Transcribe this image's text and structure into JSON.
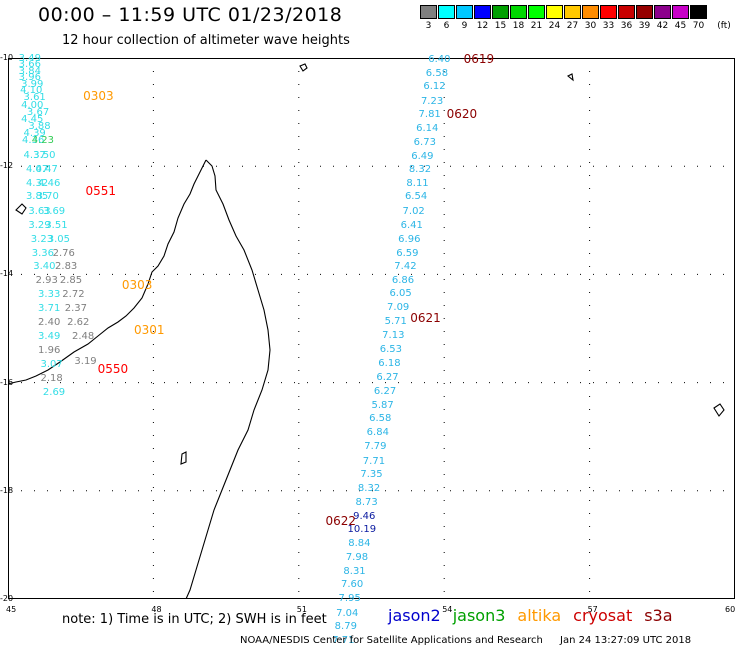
{
  "header": {
    "title": "00:00 – 11:59 UTC 01/23/2018",
    "subtitle": "12 hour collection of altimeter wave heights"
  },
  "scale": {
    "unit": "(ft)",
    "items": [
      {
        "label": "3",
        "color": "#7f7f7f"
      },
      {
        "label": "6",
        "color": "#00ffff"
      },
      {
        "label": "9",
        "color": "#00c8ff"
      },
      {
        "label": "12",
        "color": "#0000ff"
      },
      {
        "label": "15",
        "color": "#00a000"
      },
      {
        "label": "18",
        "color": "#00d800"
      },
      {
        "label": "21",
        "color": "#00ff00"
      },
      {
        "label": "24",
        "color": "#ffff00"
      },
      {
        "label": "27",
        "color": "#ffc800"
      },
      {
        "label": "30",
        "color": "#ff8c00"
      },
      {
        "label": "33",
        "color": "#ff0000"
      },
      {
        "label": "36",
        "color": "#c80000"
      },
      {
        "label": "39",
        "color": "#960000"
      },
      {
        "label": "42",
        "color": "#8c008c"
      },
      {
        "label": "45",
        "color": "#c800c8"
      },
      {
        "label": "70",
        "color": "#000000"
      }
    ]
  },
  "axes": {
    "lon_ticks": [
      "45",
      "48",
      "51",
      "54",
      "57",
      "60"
    ],
    "lat_ticks": [
      "-10",
      "-12",
      "-14",
      "-16",
      "-18",
      "-20"
    ],
    "lon_range": [
      45,
      60
    ],
    "lat_range": [
      -10,
      -20
    ],
    "grid": true
  },
  "passes": [
    {
      "label": "0619",
      "color": "#8b0000",
      "lon": 54.4,
      "lat": -10.01
    },
    {
      "label": "0620",
      "color": "#8b0000",
      "lon": 54.05,
      "lat": -11.04
    },
    {
      "label": "0621",
      "color": "#8b0000",
      "lon": 53.3,
      "lat": -14.8
    },
    {
      "label": "0622",
      "color": "#8b0000",
      "lon": 51.55,
      "lat": -18.55
    },
    {
      "label": "0303",
      "color": "#ff9900",
      "lon": 46.55,
      "lat": -10.7
    },
    {
      "label": "0551",
      "color": "#ff0000",
      "lon": 46.6,
      "lat": -12.45
    },
    {
      "label": "0303",
      "color": "#ff9900",
      "lon": 47.35,
      "lat": -14.2
    },
    {
      "label": "0301",
      "color": "#ff9900",
      "lon": 47.6,
      "lat": -15.03
    },
    {
      "label": "0550",
      "color": "#ff0000",
      "lon": 46.85,
      "lat": -15.75
    }
  ],
  "measurements": [
    {
      "v": "6.40",
      "lon": 53.9,
      "lat": -10.02,
      "c": "#2cb5e6"
    },
    {
      "v": "6.58",
      "lon": 53.85,
      "lat": -10.27,
      "c": "#2cb5e6"
    },
    {
      "v": "6.12",
      "lon": 53.8,
      "lat": -10.52,
      "c": "#2cb5e6"
    },
    {
      "v": "7.23",
      "lon": 53.75,
      "lat": -10.79,
      "c": "#2cb5e6"
    },
    {
      "v": "7.81",
      "lon": 53.7,
      "lat": -11.04,
      "c": "#2cb5e6"
    },
    {
      "v": "6.14",
      "lon": 53.65,
      "lat": -11.3,
      "c": "#2cb5e6"
    },
    {
      "v": "6.73",
      "lon": 53.6,
      "lat": -11.56,
      "c": "#2cb5e6"
    },
    {
      "v": "6.49",
      "lon": 53.55,
      "lat": -11.81,
      "c": "#2cb5e6"
    },
    {
      "v": "8.32",
      "lon": 53.5,
      "lat": -12.06,
      "c": "#2cb5e6"
    },
    {
      "v": "8.11",
      "lon": 53.45,
      "lat": -12.31,
      "c": "#2cb5e6"
    },
    {
      "v": "6.54",
      "lon": 53.42,
      "lat": -12.56,
      "c": "#2cb5e6"
    },
    {
      "v": "7.02",
      "lon": 53.37,
      "lat": -12.83,
      "c": "#2cb5e6"
    },
    {
      "v": "6.41",
      "lon": 53.33,
      "lat": -13.09,
      "c": "#2cb5e6"
    },
    {
      "v": "6.96",
      "lon": 53.28,
      "lat": -13.34,
      "c": "#2cb5e6"
    },
    {
      "v": "6.59",
      "lon": 53.24,
      "lat": -13.6,
      "c": "#2cb5e6"
    },
    {
      "v": "7.42",
      "lon": 53.2,
      "lat": -13.85,
      "c": "#2cb5e6"
    },
    {
      "v": "6.86",
      "lon": 53.15,
      "lat": -14.1,
      "c": "#2cb5e6"
    },
    {
      "v": "6.05",
      "lon": 53.1,
      "lat": -14.35,
      "c": "#2cb5e6"
    },
    {
      "v": "7.09",
      "lon": 53.05,
      "lat": -14.61,
      "c": "#2cb5e6"
    },
    {
      "v": "5.71",
      "lon": 53.0,
      "lat": -14.87,
      "c": "#2cb5e6"
    },
    {
      "v": "7.13",
      "lon": 52.95,
      "lat": -15.12,
      "c": "#2cb5e6"
    },
    {
      "v": "6.53",
      "lon": 52.9,
      "lat": -15.38,
      "c": "#2cb5e6"
    },
    {
      "v": "6.18",
      "lon": 52.87,
      "lat": -15.64,
      "c": "#2cb5e6"
    },
    {
      "v": "6.27",
      "lon": 52.83,
      "lat": -15.89,
      "c": "#2cb5e6"
    },
    {
      "v": "6.27",
      "lon": 52.78,
      "lat": -16.15,
      "c": "#2cb5e6"
    },
    {
      "v": "5.87",
      "lon": 52.73,
      "lat": -16.41,
      "c": "#2cb5e6"
    },
    {
      "v": "6.58",
      "lon": 52.68,
      "lat": -16.66,
      "c": "#2cb5e6"
    },
    {
      "v": "6.84",
      "lon": 52.63,
      "lat": -16.92,
      "c": "#2cb5e6"
    },
    {
      "v": "7.79",
      "lon": 52.58,
      "lat": -17.17,
      "c": "#2cb5e6"
    },
    {
      "v": "7.71",
      "lon": 52.55,
      "lat": -17.44,
      "c": "#2cb5e6"
    },
    {
      "v": "7.35",
      "lon": 52.5,
      "lat": -17.69,
      "c": "#2cb5e6"
    },
    {
      "v": "8.32",
      "lon": 52.45,
      "lat": -17.94,
      "c": "#2cb5e6"
    },
    {
      "v": "8.73",
      "lon": 52.4,
      "lat": -18.2,
      "c": "#2cb5e6"
    },
    {
      "v": "9.46",
      "lon": 52.35,
      "lat": -18.46,
      "c": "#0a1aa0"
    },
    {
      "v": "10.19",
      "lon": 52.3,
      "lat": -18.7,
      "c": "#0a1aa0"
    },
    {
      "v": "8.84",
      "lon": 52.25,
      "lat": -18.97,
      "c": "#2cb5e6"
    },
    {
      "v": "7.98",
      "lon": 52.2,
      "lat": -19.23,
      "c": "#2cb5e6"
    },
    {
      "v": "8.31",
      "lon": 52.15,
      "lat": -19.48,
      "c": "#2cb5e6"
    },
    {
      "v": "7.60",
      "lon": 52.1,
      "lat": -19.73,
      "c": "#2cb5e6"
    },
    {
      "v": "7.95",
      "lon": 52.05,
      "lat": -19.99,
      "c": "#2cb5e6"
    },
    {
      "v": "7.04",
      "lon": 52.0,
      "lat": -20.25,
      "c": "#2cb5e6"
    },
    {
      "v": "8.79",
      "lon": 51.97,
      "lat": -20.5,
      "c": "#2cb5e6"
    },
    {
      "v": "7.71",
      "lon": 51.92,
      "lat": -20.76,
      "c": "#2cb5e6"
    },
    {
      "v": "3.49",
      "lon": 45.45,
      "lat": -10.0,
      "c": "#33dde6"
    },
    {
      "v": "3.66",
      "lon": 45.45,
      "lat": -10.12,
      "c": "#33dde6"
    },
    {
      "v": "3.84",
      "lon": 45.45,
      "lat": -10.24,
      "c": "#33dde6"
    },
    {
      "v": "3.96",
      "lon": 45.45,
      "lat": -10.36,
      "c": "#33dde6"
    },
    {
      "v": "3.99",
      "lon": 45.5,
      "lat": -10.48,
      "c": "#33dde6"
    },
    {
      "v": "4.10",
      "lon": 45.48,
      "lat": -10.6,
      "c": "#33dde6"
    },
    {
      "v": "3.61",
      "lon": 45.55,
      "lat": -10.73,
      "c": "#33dde6"
    },
    {
      "v": "4.00",
      "lon": 45.5,
      "lat": -10.86,
      "c": "#33dde6"
    },
    {
      "v": "3.67",
      "lon": 45.62,
      "lat": -10.99,
      "c": "#33dde6"
    },
    {
      "v": "4.45",
      "lon": 45.5,
      "lat": -11.12,
      "c": "#33dde6"
    },
    {
      "v": "3.88",
      "lon": 45.65,
      "lat": -11.25,
      "c": "#33dde6"
    },
    {
      "v": "4.39",
      "lon": 45.55,
      "lat": -11.38,
      "c": "#33dde6"
    },
    {
      "v": "4.36",
      "lon": 45.52,
      "lat": -11.52,
      "c": "#33dde6"
    },
    {
      "v": "4.23",
      "lon": 45.72,
      "lat": -11.52,
      "c": "#33cc55"
    },
    {
      "v": "3.50",
      "lon": 45.75,
      "lat": -11.79,
      "c": "#33dde6"
    },
    {
      "v": "4.37",
      "lon": 45.55,
      "lat": -11.79,
      "c": "#33dde6"
    },
    {
      "v": "4.07",
      "lon": 45.6,
      "lat": -12.05,
      "c": "#33dde6"
    },
    {
      "v": "4.47",
      "lon": 45.8,
      "lat": -12.05,
      "c": "#33dde6"
    },
    {
      "v": "4.32",
      "lon": 45.6,
      "lat": -12.31,
      "c": "#33dde6"
    },
    {
      "v": "4.46",
      "lon": 45.85,
      "lat": -12.31,
      "c": "#33dde6"
    },
    {
      "v": "3.85",
      "lon": 45.6,
      "lat": -12.56,
      "c": "#33dde6"
    },
    {
      "v": "3.70",
      "lon": 45.82,
      "lat": -12.56,
      "c": "#33dde6"
    },
    {
      "v": "3.63",
      "lon": 45.65,
      "lat": -12.82,
      "c": "#33dde6"
    },
    {
      "v": "3.69",
      "lon": 45.95,
      "lat": -12.82,
      "c": "#33dde6"
    },
    {
      "v": "3.29",
      "lon": 45.65,
      "lat": -13.08,
      "c": "#33dde6"
    },
    {
      "v": "3.51",
      "lon": 46.0,
      "lat": -13.08,
      "c": "#33dde6"
    },
    {
      "v": "3.23",
      "lon": 45.7,
      "lat": -13.34,
      "c": "#33dde6"
    },
    {
      "v": "3.05",
      "lon": 46.05,
      "lat": -13.34,
      "c": "#33dde6"
    },
    {
      "v": "3.36",
      "lon": 45.72,
      "lat": -13.6,
      "c": "#33dde6"
    },
    {
      "v": "2.76",
      "lon": 46.15,
      "lat": -13.6,
      "c": "#7f7f7f"
    },
    {
      "v": "3.40",
      "lon": 45.75,
      "lat": -13.85,
      "c": "#33dde6"
    },
    {
      "v": "2.83",
      "lon": 46.2,
      "lat": -13.85,
      "c": "#7f7f7f"
    },
    {
      "v": "2.93",
      "lon": 45.8,
      "lat": -14.11,
      "c": "#7f7f7f"
    },
    {
      "v": "2.85",
      "lon": 46.3,
      "lat": -14.11,
      "c": "#7f7f7f"
    },
    {
      "v": "3.33",
      "lon": 45.85,
      "lat": -14.36,
      "c": "#33dde6"
    },
    {
      "v": "2.72",
      "lon": 46.35,
      "lat": -14.36,
      "c": "#7f7f7f"
    },
    {
      "v": "3.71",
      "lon": 45.85,
      "lat": -14.62,
      "c": "#33dde6"
    },
    {
      "v": "2.37",
      "lon": 46.4,
      "lat": -14.62,
      "c": "#7f7f7f"
    },
    {
      "v": "2.40",
      "lon": 45.85,
      "lat": -14.88,
      "c": "#7f7f7f"
    },
    {
      "v": "2.62",
      "lon": 46.45,
      "lat": -14.88,
      "c": "#7f7f7f"
    },
    {
      "v": "3.49",
      "lon": 45.85,
      "lat": -15.14,
      "c": "#33dde6"
    },
    {
      "v": "2.48",
      "lon": 46.55,
      "lat": -15.14,
      "c": "#7f7f7f"
    },
    {
      "v": "1.96",
      "lon": 45.85,
      "lat": -15.4,
      "c": "#7f7f7f"
    },
    {
      "v": "3.07",
      "lon": 45.9,
      "lat": -15.65,
      "c": "#33dde6"
    },
    {
      "v": "3.19",
      "lon": 46.6,
      "lat": -15.6,
      "c": "#7f7f7f"
    },
    {
      "v": "2.18",
      "lon": 45.9,
      "lat": -15.91,
      "c": "#7f7f7f"
    },
    {
      "v": "2.69",
      "lon": 45.95,
      "lat": -16.17,
      "c": "#33dde6"
    }
  ],
  "legend": {
    "note": "note: 1) Time is in UTC; 2) SWH is in feet",
    "satellites": [
      {
        "name": "jason2",
        "color": "#0000cc"
      },
      {
        "name": "jason3",
        "color": "#00a000"
      },
      {
        "name": "altika",
        "color": "#ff9900"
      },
      {
        "name": "cryosat",
        "color": "#cc0000"
      },
      {
        "name": "s3a",
        "color": "#8b0000"
      }
    ]
  },
  "footer": {
    "credit": "NOAA/NESDIS Center for Satellite Applications and Research",
    "timestamp": "Jan 24 13:27:09 UTC 2018"
  }
}
